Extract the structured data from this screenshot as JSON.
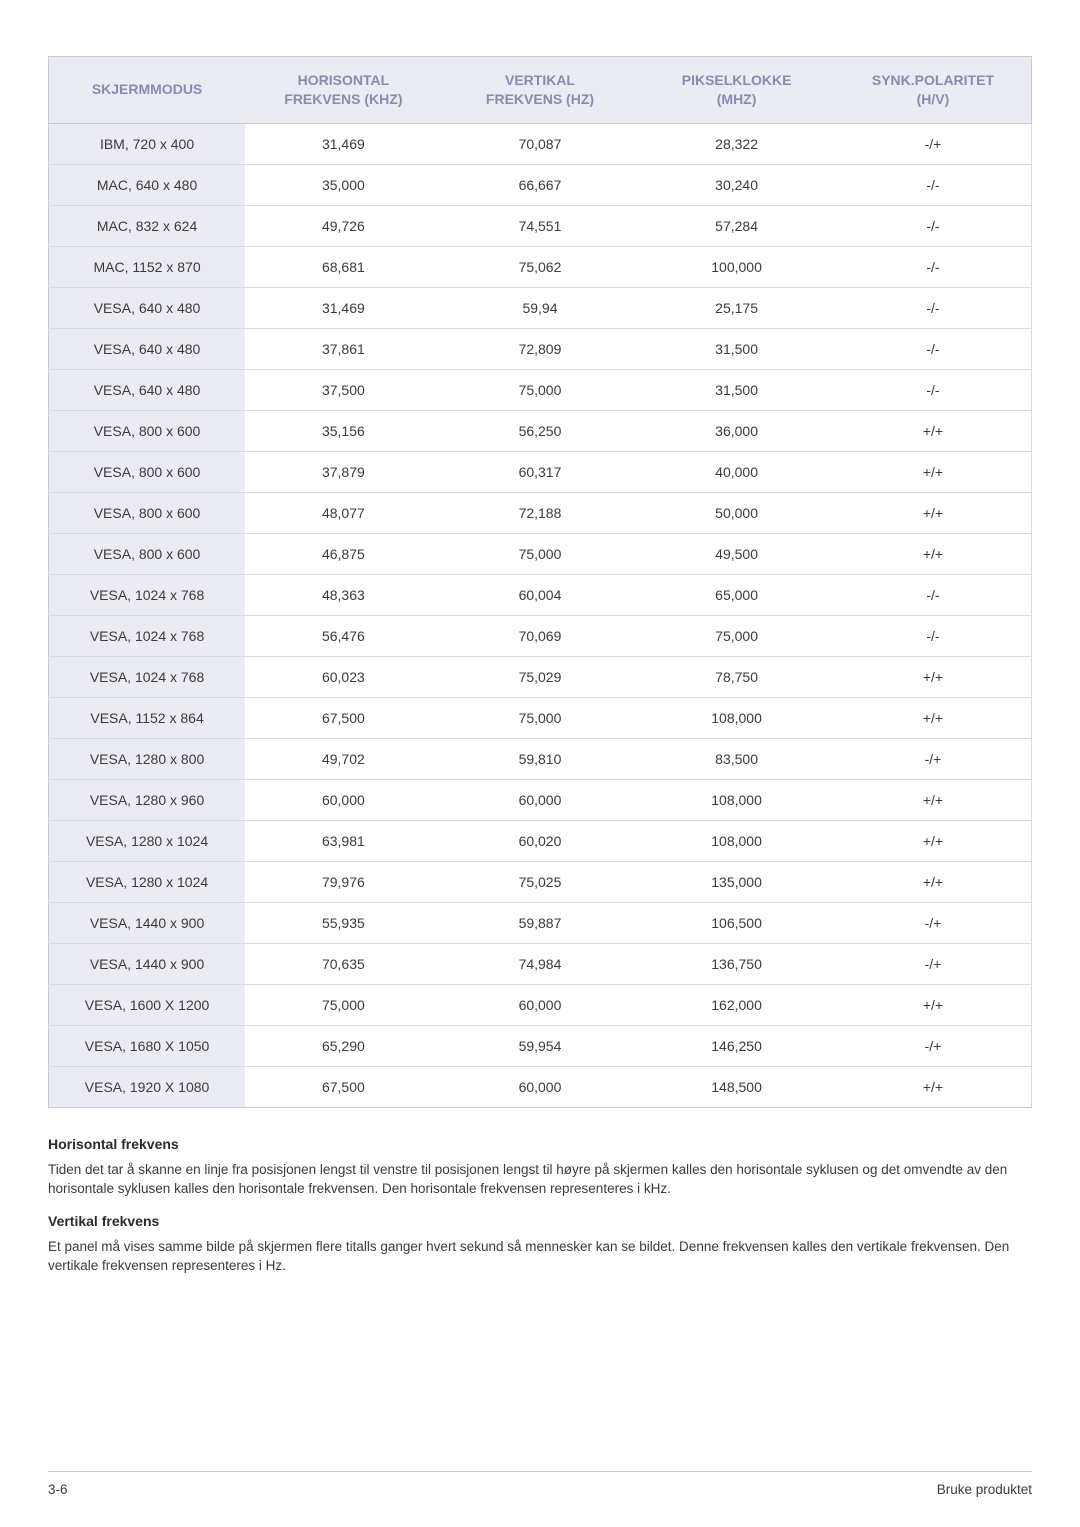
{
  "table": {
    "columns": [
      {
        "line1": "SKJERMMODUS",
        "line2": ""
      },
      {
        "line1": "HORISONTAL",
        "line2": "FREKVENS (KHZ)"
      },
      {
        "line1": "VERTIKAL",
        "line2": "FREKVENS (HZ)"
      },
      {
        "line1": "PIKSELKLOKKE",
        "line2": "(MHZ)"
      },
      {
        "line1": "SYNK.POLARITET",
        "line2": "(H/V)"
      }
    ],
    "rows": [
      [
        "IBM, 720 x 400",
        "31,469",
        "70,087",
        "28,322",
        "-/+"
      ],
      [
        "MAC, 640 x 480",
        "35,000",
        "66,667",
        "30,240",
        "-/-"
      ],
      [
        "MAC, 832 x 624",
        "49,726",
        "74,551",
        "57,284",
        "-/-"
      ],
      [
        "MAC, 1152 x 870",
        "68,681",
        "75,062",
        "100,000",
        "-/-"
      ],
      [
        "VESA, 640 x 480",
        "31,469",
        "59,94",
        "25,175",
        "-/-"
      ],
      [
        "VESA, 640 x 480",
        "37,861",
        "72,809",
        "31,500",
        "-/-"
      ],
      [
        "VESA, 640 x 480",
        "37,500",
        "75,000",
        "31,500",
        "-/-"
      ],
      [
        "VESA, 800 x 600",
        "35,156",
        "56,250",
        "36,000",
        "+/+"
      ],
      [
        "VESA, 800 x 600",
        "37,879",
        "60,317",
        "40,000",
        "+/+"
      ],
      [
        "VESA, 800 x 600",
        "48,077",
        "72,188",
        "50,000",
        "+/+"
      ],
      [
        "VESA, 800 x 600",
        "46,875",
        "75,000",
        "49,500",
        "+/+"
      ],
      [
        "VESA, 1024 x 768",
        "48,363",
        "60,004",
        "65,000",
        "-/-"
      ],
      [
        "VESA, 1024 x 768",
        "56,476",
        "70,069",
        "75,000",
        "-/-"
      ],
      [
        "VESA, 1024 x 768",
        "60,023",
        "75,029",
        "78,750",
        "+/+"
      ],
      [
        "VESA, 1152 x 864",
        "67,500",
        "75,000",
        "108,000",
        "+/+"
      ],
      [
        "VESA, 1280 x 800",
        "49,702",
        "59,810",
        "83,500",
        "-/+"
      ],
      [
        "VESA, 1280 x 960",
        "60,000",
        "60,000",
        "108,000",
        "+/+"
      ],
      [
        "VESA, 1280 x 1024",
        "63,981",
        "60,020",
        "108,000",
        "+/+"
      ],
      [
        "VESA, 1280 x 1024",
        "79,976",
        "75,025",
        "135,000",
        "+/+"
      ],
      [
        "VESA, 1440 x 900",
        "55,935",
        "59,887",
        "106,500",
        "-/+"
      ],
      [
        "VESA, 1440 x 900",
        "70,635",
        "74,984",
        "136,750",
        "-/+"
      ],
      [
        "VESA, 1600 X 1200",
        "75,000",
        "60,000",
        "162,000",
        "+/+"
      ],
      [
        "VESA, 1680 X 1050",
        "65,290",
        "59,954",
        "146,250",
        "-/+"
      ],
      [
        "VESA, 1920 X 1080",
        "67,500",
        "60,000",
        "148,500",
        "+/+"
      ]
    ],
    "col_widths_pct": [
      20,
      20,
      20,
      20,
      20
    ],
    "header_bg": "#ebebf3",
    "header_color": "#8a8ab0",
    "first_col_bg": "#ebebf3",
    "border_color": "#c9c9d6",
    "row_border_color": "#d9d9e2",
    "text_color": "#3b3b3b",
    "font_size_pt": 10.5
  },
  "notes": {
    "h1": "Horisontal frekvens",
    "p1": "Tiden det tar å skanne en linje fra posisjonen lengst til venstre til posisjonen lengst til høyre på skjermen kalles den horisontale syklusen og det omvendte av den horisontale syklusen kalles den horisontale frekvensen. Den horisontale frekvensen representeres i kHz.",
    "h2": "Vertikal frekvens",
    "p2": "Et panel må vises samme bilde på skjermen flere titalls ganger hvert sekund så mennesker kan se bildet. Denne frekvensen kalles den vertikale frekvensen. Den vertikale frekvensen representeres i Hz."
  },
  "footer": {
    "left": "3-6",
    "right": "Bruke produktet"
  }
}
